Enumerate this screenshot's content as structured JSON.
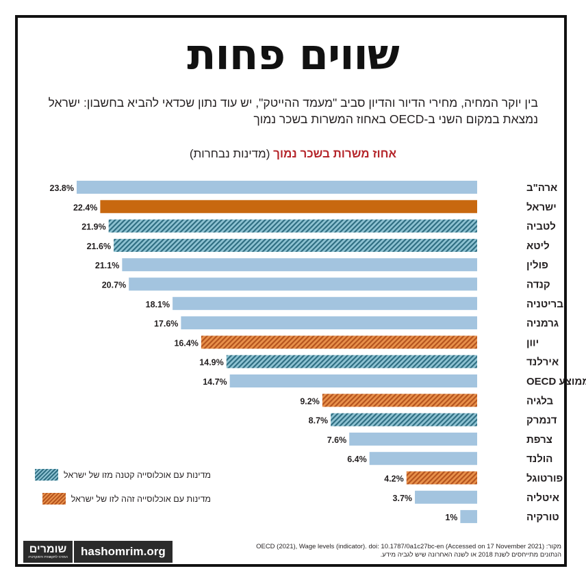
{
  "title": "שווים פחות",
  "subtitle": "בין יוקר המחיה, מחירי הדיור והדיון סביב \"מעמד ההייטק\", יש עוד נתון שכדאי להביא בחשבון: ישראל נמצאת במקום השני ב-OECD באחוז המשרות בשכר נמוך",
  "chart_heading": {
    "highlight": "אחוז משרות בשכר נמוך",
    "rest": "(מדינות נבחרות)"
  },
  "colors": {
    "default_bar": "#a3c4df",
    "israel_bar": "#c8680f",
    "pop_smaller_stripe_dark": "#2f6e82",
    "pop_smaller_stripe_light": "#8fc3d3",
    "pop_similar_stripe_dark": "#b5541f",
    "pop_similar_stripe_light": "#e8914b",
    "highlight_text": "#b5262b"
  },
  "legend": {
    "smaller": "מדינות עם אוכלוסייה קטנה מזו של ישראל",
    "similar": "מדינות עם אוכלוסייה זהה לזו של ישראל"
  },
  "chart_data": {
    "type": "bar",
    "orientation": "horizontal",
    "unit": "%",
    "categories": [
      "ארה\"ב",
      "ישראל",
      "לטביה",
      "ליטא",
      "פולין",
      "קנדה",
      "בריטניה",
      "גרמניה",
      "יוון",
      "אירלנד",
      "ממוצע OECD",
      "בלגיה",
      "דנמרק",
      "צרפת",
      "הולנד",
      "פורטוגל",
      "איטליה",
      "טורקיה"
    ],
    "values": [
      23.8,
      22.4,
      21.9,
      21.6,
      21.1,
      20.7,
      18.1,
      17.6,
      16.4,
      14.9,
      14.7,
      9.2,
      8.7,
      7.6,
      6.4,
      4.2,
      3.7,
      1
    ],
    "value_labels": [
      "23.8%",
      "22.4%",
      "21.9%",
      "21.6%",
      "21.1%",
      "20.7%",
      "18.1%",
      "17.6%",
      "16.4%",
      "14.9%",
      "14.7%",
      "9.2%",
      "8.7%",
      "7.6%",
      "6.4%",
      "4.2%",
      "3.7%",
      "1%"
    ],
    "styles": [
      "default",
      "israel",
      "smaller",
      "smaller",
      "default",
      "default",
      "default",
      "default",
      "similar",
      "smaller",
      "default",
      "similar",
      "smaller",
      "default",
      "default",
      "similar",
      "default",
      "default"
    ],
    "xlim": [
      0,
      25
    ],
    "grid": false,
    "legend_position": "bottom-left"
  },
  "logo": {
    "name": "שומרים",
    "tagline": "המרכז לתקשורת ודמוקרטיה",
    "url": "hashomrim.org"
  },
  "source": {
    "line1": "מקור: OECD (2021), Wage levels (indicator). doi: 10.1787/0a1c27bc-en (Accessed on 17 November 2021)",
    "line2": "הנתונים מתייחסים לשנת 2018 או לשנה האחרונה שיש לגביה מידע."
  }
}
